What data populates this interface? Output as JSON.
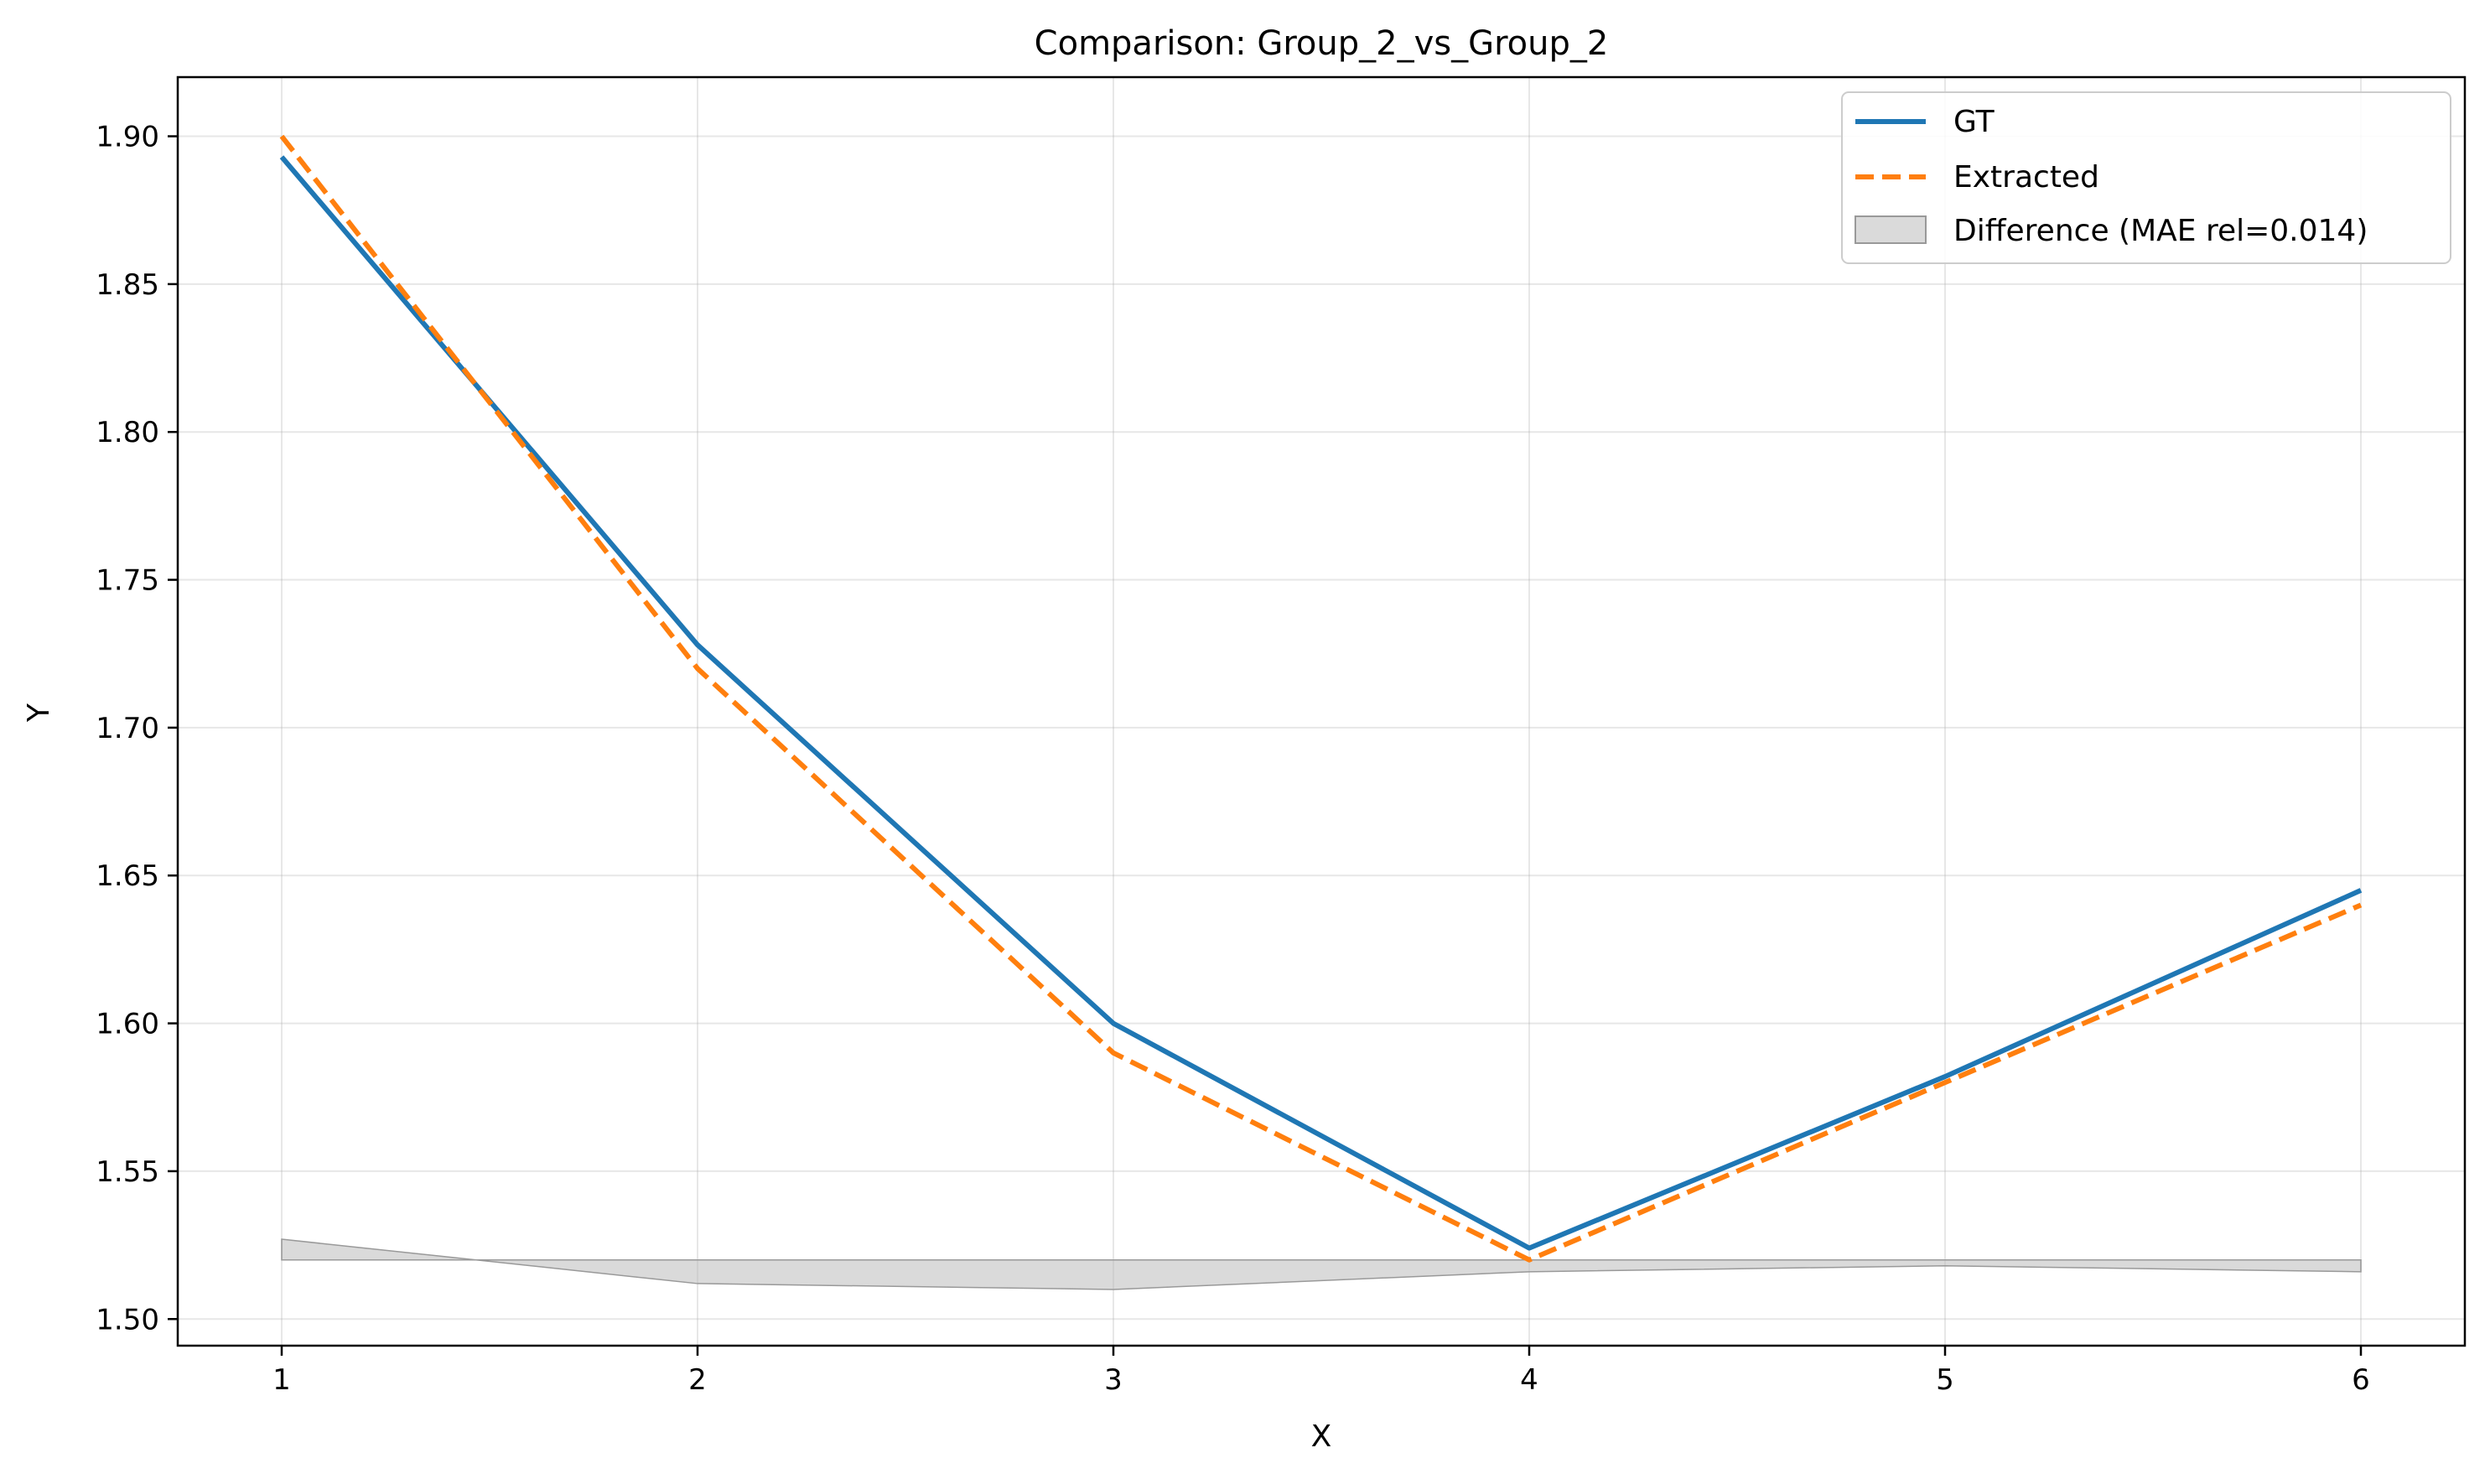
{
  "chart_data": {
    "type": "line",
    "title": "Comparison: Group_2_vs_Group_2",
    "xlabel": "X",
    "ylabel": "Y",
    "xlim": [
      0.75,
      6.25
    ],
    "ylim": [
      1.491,
      1.92
    ],
    "x_ticks": [
      1,
      2,
      3,
      4,
      5,
      6
    ],
    "x_tick_labels": [
      "1",
      "2",
      "3",
      "4",
      "5",
      "6"
    ],
    "y_ticks": [
      1.5,
      1.55,
      1.6,
      1.65,
      1.7,
      1.75,
      1.8,
      1.85,
      1.9
    ],
    "y_tick_labels": [
      "1.50",
      "1.55",
      "1.60",
      "1.65",
      "1.70",
      "1.75",
      "1.80",
      "1.85",
      "1.90"
    ],
    "grid": true,
    "legend_position": "top-right",
    "x": [
      1,
      2,
      3,
      4,
      5,
      6
    ],
    "series": [
      {
        "name": "GT",
        "values": [
          1.893,
          1.728,
          1.6,
          1.524,
          1.582,
          1.645
        ],
        "color": "#1f77b4",
        "style": "solid"
      },
      {
        "name": "Extracted",
        "values": [
          1.9,
          1.72,
          1.59,
          1.52,
          1.58,
          1.64
        ],
        "color": "#ff7f0e",
        "style": "dashed"
      }
    ],
    "difference_band": {
      "name": "Difference (MAE rel=0.014)",
      "baseline": 1.52,
      "values": [
        1.527,
        1.512,
        1.51,
        1.516,
        1.518,
        1.516
      ],
      "color": "#bbbbbb"
    }
  }
}
